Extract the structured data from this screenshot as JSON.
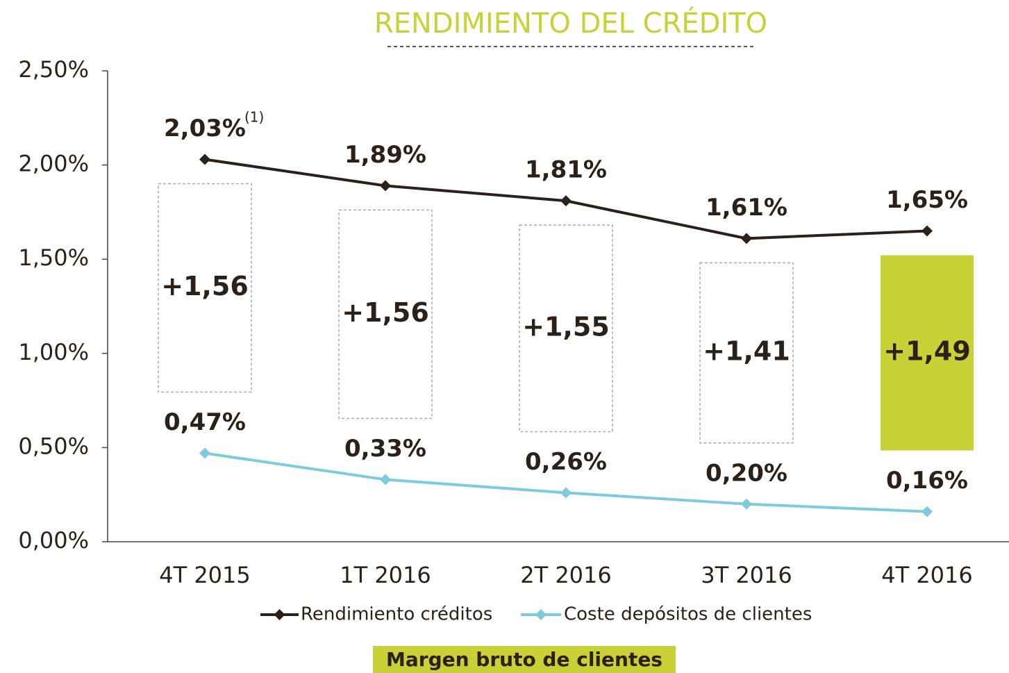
{
  "chart_data": {
    "type": "line",
    "title": "RENDIMIENTO DEL CRÉDITO",
    "title_color": "#c8d136",
    "categories": [
      "4T 2015",
      "1T 2016",
      "2T 2016",
      "3T 2016",
      "4T 2016"
    ],
    "series": [
      {
        "name": "Rendimiento créditos",
        "color": "#2b2118",
        "values": [
          2.03,
          1.89,
          1.81,
          1.61,
          1.65
        ],
        "value_labels": [
          "2,03%",
          "1,89%",
          "1,81%",
          "1,61%",
          "1,65%"
        ]
      },
      {
        "name": "Coste depósitos de clientes",
        "color": "#7ecbdc",
        "values": [
          0.47,
          0.33,
          0.26,
          0.2,
          0.16
        ],
        "value_labels": [
          "0,47%",
          "0,33%",
          "0,26%",
          "0,20%",
          "0,16%"
        ]
      }
    ],
    "annotation": "(1)",
    "margin": {
      "name": "Margen bruto de clientes",
      "color": "#c8d136",
      "highlight": 4,
      "values": [
        1.56,
        1.56,
        1.55,
        1.41,
        1.49
      ],
      "value_labels": [
        "+1,56",
        "+1,56",
        "+1,55",
        "+1,41",
        "+1,49"
      ]
    },
    "ylim": [
      0,
      2.5
    ],
    "yticks": [
      {
        "value": 0,
        "label": "0,00%"
      },
      {
        "value": 0.5,
        "label": "0,50%"
      },
      {
        "value": 1,
        "label": "1,00%"
      },
      {
        "value": 1.5,
        "label": "1,50%"
      },
      {
        "value": 2,
        "label": "2,00%"
      },
      {
        "value": 2.5,
        "label": "2,50%"
      }
    ]
  }
}
